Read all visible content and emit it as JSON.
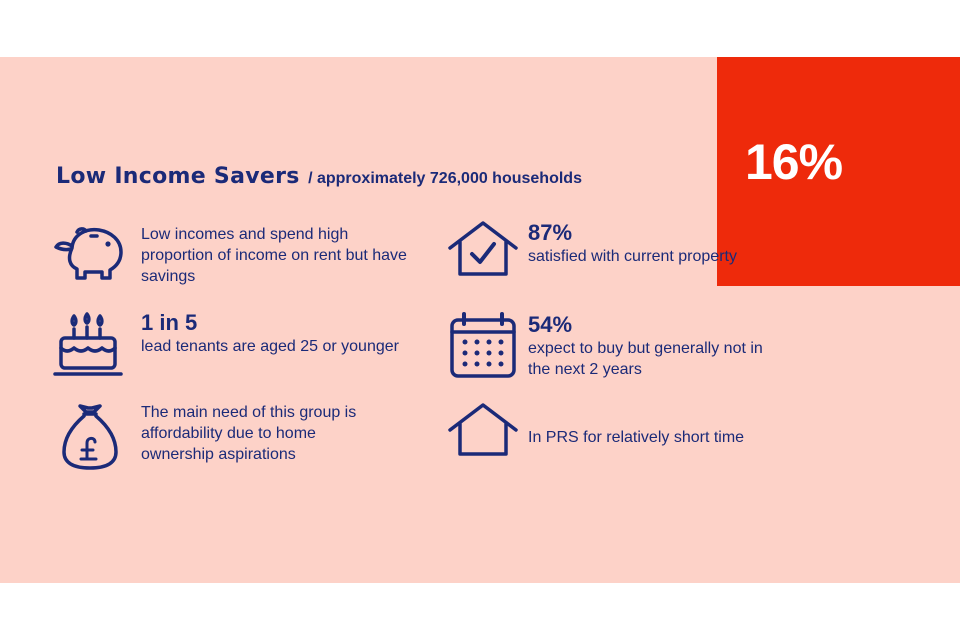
{
  "badge": {
    "percent": "16%"
  },
  "header": {
    "title": "Low Income Savers",
    "subtitle": "/ approximately 726,000 households"
  },
  "left_items": [
    {
      "icon": "piggy-bank-icon",
      "stat": "",
      "text": "Low incomes and spend high proportion of income on rent but have savings"
    },
    {
      "icon": "birthday-cake-icon",
      "stat": "1 in 5",
      "text": "lead tenants are aged 25 or younger"
    },
    {
      "icon": "money-bag-pound-icon",
      "stat": "",
      "text": "The main need of this group is affordability due to home ownership aspirations"
    }
  ],
  "right_items": [
    {
      "icon": "house-check-icon",
      "stat": "87%",
      "text": "satisfied with current property"
    },
    {
      "icon": "calendar-icon",
      "stat": "54%",
      "text": "expect to buy but generally not in the next 2 years"
    },
    {
      "icon": "house-icon",
      "stat": "",
      "text": "In PRS for relatively short time"
    }
  ],
  "colors": {
    "navy": "#1b2a78",
    "background": "#fdd2c8",
    "accent": "#ee2a0b"
  }
}
